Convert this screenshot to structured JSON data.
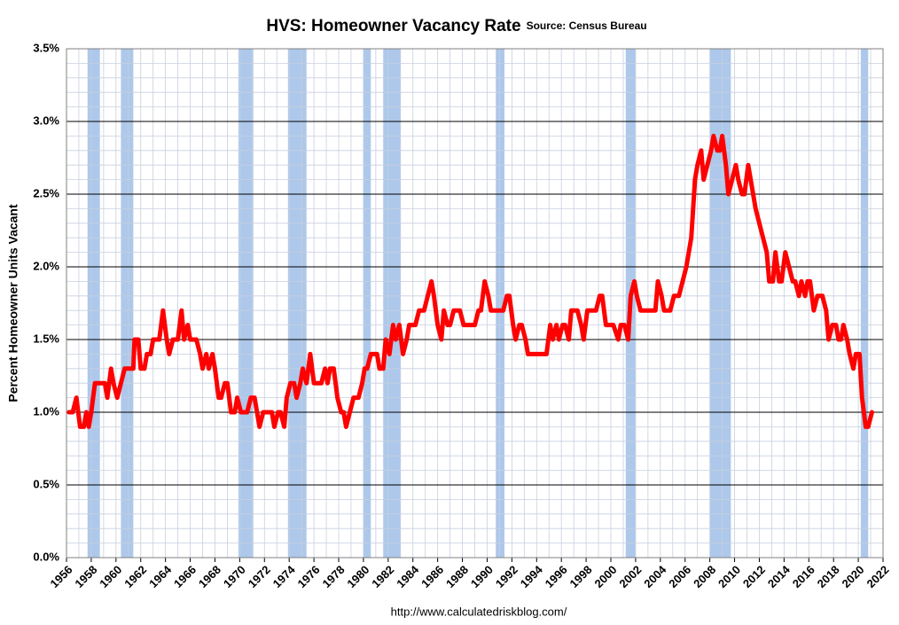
{
  "chart_data": {
    "type": "line",
    "title": "HVS: Homeowner Vacancy Rate",
    "subtitle": "Source: Census Bureau",
    "ylabel": "Percent Homeowner Units Vacant",
    "footer": "http://www.calculatedriskblog.com/",
    "x": [
      1956.2,
      1956.5,
      1956.8,
      1957.1,
      1957.4,
      1957.6,
      1957.8,
      1958.0,
      1958.3,
      1959.1,
      1959.3,
      1959.6,
      1959.8,
      1960.1,
      1960.4,
      1960.7,
      1961.4,
      1961.5,
      1961.8,
      1962.0,
      1962.3,
      1962.5,
      1962.8,
      1963.0,
      1963.5,
      1963.8,
      1964.1,
      1964.3,
      1964.6,
      1965.0,
      1965.3,
      1965.5,
      1965.8,
      1966.0,
      1966.5,
      1966.8,
      1967.0,
      1967.3,
      1967.5,
      1967.8,
      1968.0,
      1968.3,
      1968.5,
      1968.8,
      1969.0,
      1969.3,
      1969.6,
      1969.8,
      1970.1,
      1970.6,
      1970.9,
      1971.2,
      1971.4,
      1971.6,
      1971.9,
      1972.6,
      1972.8,
      1973.1,
      1973.3,
      1973.6,
      1973.8,
      1974.1,
      1974.4,
      1974.6,
      1974.9,
      1975.1,
      1975.4,
      1975.7,
      1976.0,
      1976.6,
      1976.9,
      1977.1,
      1977.3,
      1977.6,
      1977.9,
      1978.2,
      1978.4,
      1978.6,
      1978.9,
      1979.2,
      1979.6,
      1979.9,
      1980.1,
      1980.3,
      1980.6,
      1981.1,
      1981.3,
      1981.6,
      1981.8,
      1982.1,
      1982.4,
      1982.6,
      1982.9,
      1983.2,
      1983.5,
      1983.7,
      1984.2,
      1984.5,
      1984.9,
      1985.2,
      1985.5,
      1985.7,
      1986.0,
      1986.3,
      1986.5,
      1986.8,
      1987.0,
      1987.3,
      1987.8,
      1988.1,
      1989.0,
      1989.3,
      1989.5,
      1989.8,
      1990.1,
      1990.3,
      1991.3,
      1991.6,
      1991.8,
      1992.1,
      1992.3,
      1992.6,
      1992.8,
      1993.1,
      1993.3,
      1994.8,
      1995.1,
      1995.3,
      1995.6,
      1995.8,
      1996.1,
      1996.3,
      1996.6,
      1996.8,
      1997.3,
      1997.6,
      1997.8,
      1998.1,
      1998.8,
      1999.1,
      1999.3,
      1999.6,
      2000.2,
      2000.6,
      2000.8,
      2001.1,
      2001.4,
      2001.6,
      2001.9,
      2002.1,
      2002.4,
      2003.6,
      2003.8,
      2004.1,
      2004.3,
      2004.8,
      2005.1,
      2005.5,
      2005.8,
      2006.1,
      2006.5,
      2006.8,
      2007.0,
      2007.3,
      2007.5,
      2007.8,
      2008.1,
      2008.3,
      2008.6,
      2008.8,
      2009.0,
      2009.3,
      2009.5,
      2009.8,
      2010.1,
      2010.3,
      2010.6,
      2010.8,
      2011.1,
      2011.3,
      2011.7,
      2012.0,
      2012.3,
      2012.6,
      2012.8,
      2013.1,
      2013.3,
      2013.6,
      2013.8,
      2014.1,
      2014.4,
      2014.7,
      2014.9,
      2015.2,
      2015.4,
      2015.7,
      2015.9,
      2016.1,
      2016.4,
      2016.7,
      2017.1,
      2017.4,
      2017.6,
      2017.9,
      2018.2,
      2018.4,
      2018.6,
      2018.8,
      2019.1,
      2019.3,
      2019.6,
      2019.8,
      2020.1,
      2020.3,
      2020.6,
      2020.8,
      2021.1
    ],
    "series": [
      {
        "name": "Homeowner Vacancy Rate",
        "color": "#ff0000",
        "values": [
          1.0,
          1.0,
          1.1,
          0.9,
          0.9,
          1.0,
          0.9,
          1.0,
          1.2,
          1.2,
          1.1,
          1.3,
          1.2,
          1.1,
          1.2,
          1.3,
          1.3,
          1.5,
          1.5,
          1.3,
          1.3,
          1.4,
          1.4,
          1.5,
          1.5,
          1.7,
          1.5,
          1.4,
          1.5,
          1.5,
          1.7,
          1.5,
          1.6,
          1.5,
          1.5,
          1.4,
          1.3,
          1.4,
          1.3,
          1.4,
          1.3,
          1.1,
          1.1,
          1.2,
          1.2,
          1.0,
          1.0,
          1.1,
          1.0,
          1.0,
          1.1,
          1.1,
          1.0,
          0.9,
          1.0,
          1.0,
          0.9,
          1.0,
          1.0,
          0.9,
          1.1,
          1.2,
          1.2,
          1.1,
          1.2,
          1.3,
          1.2,
          1.4,
          1.2,
          1.2,
          1.3,
          1.2,
          1.3,
          1.3,
          1.1,
          1.0,
          1.0,
          0.9,
          1.0,
          1.1,
          1.1,
          1.2,
          1.3,
          1.3,
          1.4,
          1.4,
          1.3,
          1.3,
          1.5,
          1.4,
          1.6,
          1.5,
          1.6,
          1.4,
          1.5,
          1.6,
          1.6,
          1.7,
          1.7,
          1.8,
          1.9,
          1.8,
          1.6,
          1.5,
          1.7,
          1.6,
          1.6,
          1.7,
          1.7,
          1.6,
          1.6,
          1.7,
          1.7,
          1.9,
          1.8,
          1.7,
          1.7,
          1.8,
          1.8,
          1.6,
          1.5,
          1.6,
          1.6,
          1.5,
          1.4,
          1.4,
          1.6,
          1.5,
          1.6,
          1.5,
          1.6,
          1.6,
          1.5,
          1.7,
          1.7,
          1.6,
          1.5,
          1.7,
          1.7,
          1.8,
          1.8,
          1.6,
          1.6,
          1.5,
          1.6,
          1.6,
          1.5,
          1.8,
          1.9,
          1.8,
          1.7,
          1.7,
          1.9,
          1.8,
          1.7,
          1.7,
          1.8,
          1.8,
          1.9,
          2.0,
          2.2,
          2.6,
          2.7,
          2.8,
          2.6,
          2.7,
          2.8,
          2.9,
          2.8,
          2.8,
          2.9,
          2.7,
          2.5,
          2.6,
          2.7,
          2.6,
          2.5,
          2.5,
          2.7,
          2.6,
          2.4,
          2.3,
          2.2,
          2.1,
          1.9,
          1.9,
          2.1,
          1.9,
          1.9,
          2.1,
          2.0,
          1.9,
          1.9,
          1.8,
          1.9,
          1.8,
          1.9,
          1.9,
          1.7,
          1.8,
          1.8,
          1.7,
          1.5,
          1.6,
          1.6,
          1.5,
          1.5,
          1.6,
          1.5,
          1.4,
          1.3,
          1.4,
          1.4,
          1.1,
          0.9,
          0.9,
          1.0
        ]
      }
    ],
    "shaded_periods": [
      [
        1957.7,
        1958.7
      ],
      [
        1960.4,
        1961.4
      ],
      [
        1969.9,
        1971.1
      ],
      [
        1973.9,
        1975.4
      ],
      [
        1980.0,
        1980.6
      ],
      [
        1981.6,
        1983.0
      ],
      [
        1990.7,
        1991.4
      ],
      [
        2001.2,
        2002.0
      ],
      [
        2008.0,
        2009.7
      ],
      [
        2020.2,
        2020.8
      ]
    ],
    "shade_color": "#a4c2e8",
    "xlim": [
      1956,
      2022
    ],
    "xticks": [
      1956,
      1958,
      1960,
      1962,
      1964,
      1966,
      1968,
      1970,
      1972,
      1974,
      1976,
      1978,
      1980,
      1982,
      1984,
      1986,
      1988,
      1990,
      1992,
      1994,
      1996,
      1998,
      2000,
      2002,
      2004,
      2006,
      2008,
      2010,
      2012,
      2014,
      2016,
      2018,
      2020,
      2022
    ],
    "ylim": [
      0,
      3.5
    ],
    "yticks": [
      {
        "value": 0,
        "label": "0.0%"
      },
      {
        "value": 0.5,
        "label": "0.5%"
      },
      {
        "value": 1,
        "label": "1.0%"
      },
      {
        "value": 1.5,
        "label": "1.5%"
      },
      {
        "value": 2,
        "label": "2.0%"
      },
      {
        "value": 2.5,
        "label": "2.5%"
      },
      {
        "value": 3,
        "label": "3.0%"
      },
      {
        "value": 3.5,
        "label": "3.5%"
      }
    ],
    "grid": true,
    "minor_grid": {
      "x": 1,
      "y": 0.1
    }
  }
}
